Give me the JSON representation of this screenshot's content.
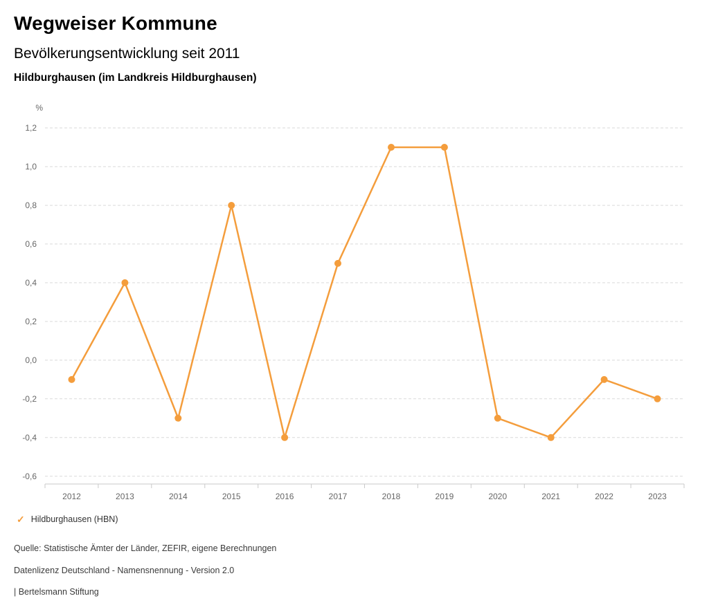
{
  "app_title": "Wegweiser Kommune",
  "chart_data": {
    "type": "line",
    "title": "Bevölkerungsentwicklung seit 2011",
    "subtitle": "Hildburghausen (im Landkreis Hildburghausen)",
    "unit_label": "%",
    "categories": [
      "2012",
      "2013",
      "2014",
      "2015",
      "2016",
      "2017",
      "2018",
      "2019",
      "2020",
      "2021",
      "2022",
      "2023"
    ],
    "series": [
      {
        "name": "Hildburghausen (HBN)",
        "color": "#F49D3C",
        "values": [
          -0.1,
          0.4,
          -0.3,
          0.8,
          -0.4,
          0.5,
          1.1,
          1.1,
          -0.3,
          -0.4,
          -0.1,
          -0.2
        ]
      }
    ],
    "ylim": [
      -0.64,
      1.2
    ],
    "yticks": [
      {
        "v": 1.2,
        "label": "1,2"
      },
      {
        "v": 1.0,
        "label": "1,0"
      },
      {
        "v": 0.8,
        "label": "0,8"
      },
      {
        "v": 0.6,
        "label": "0,6"
      },
      {
        "v": 0.4,
        "label": "0,4"
      },
      {
        "v": 0.2,
        "label": "0,2"
      },
      {
        "v": 0.0,
        "label": "0,0"
      },
      {
        "v": -0.2,
        "label": "-0,2"
      },
      {
        "v": -0.4,
        "label": "-0,4"
      },
      {
        "v": -0.6,
        "label": "-0,6"
      }
    ],
    "grid": true,
    "legend_position": "bottom-left"
  },
  "legend": {
    "check_icon": "✓"
  },
  "footer": {
    "source": "Quelle: Statistische Ämter der Länder, ZEFIR, eigene Berechnungen",
    "license": "Datenlizenz Deutschland - Namensnennung - Version 2.0",
    "publisher": "| Bertelsmann Stiftung"
  },
  "colors": {
    "accent": "#F49D3C",
    "grid": "#D9D9D9",
    "axis": "#C9C9C9",
    "tick_text": "#666666"
  }
}
